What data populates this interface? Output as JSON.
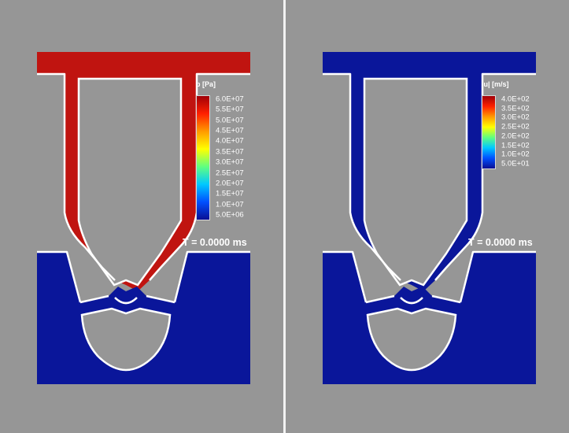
{
  "colors": {
    "background": "#969696",
    "high": "#c01410",
    "low": "#0a169a",
    "wall": "#ffffff"
  },
  "colormap": [
    "#0a0f94",
    "#0050ff",
    "#00c8ff",
    "#60ff80",
    "#ffff00",
    "#ff9a00",
    "#ff2000",
    "#a00008"
  ],
  "panels": [
    {
      "field": "pressure",
      "colorbar_title": "p [Pa]",
      "ticks": [
        "6.0E+07",
        "5.5E+07",
        "5.0E+07",
        "4.5E+07",
        "4.0E+07",
        "3.5E+07",
        "3.0E+07",
        "2.5E+07",
        "2.0E+07",
        "1.5E+07",
        "1.0E+07",
        "5.0E+06"
      ],
      "time_label": "T = 0.0000 ms",
      "upper_region": "high",
      "lower_region": "low"
    },
    {
      "field": "velocity-magnitude",
      "colorbar_title": "|u| [m/s]",
      "ticks": [
        "4.0E+02",
        "3.5E+02",
        "3.0E+02",
        "2.5E+02",
        "2.0E+02",
        "1.5E+02",
        "1.0E+02",
        "5.0E+01"
      ],
      "time_label": "T = 0.0000 ms",
      "upper_region": "low",
      "lower_region": "low"
    }
  ]
}
